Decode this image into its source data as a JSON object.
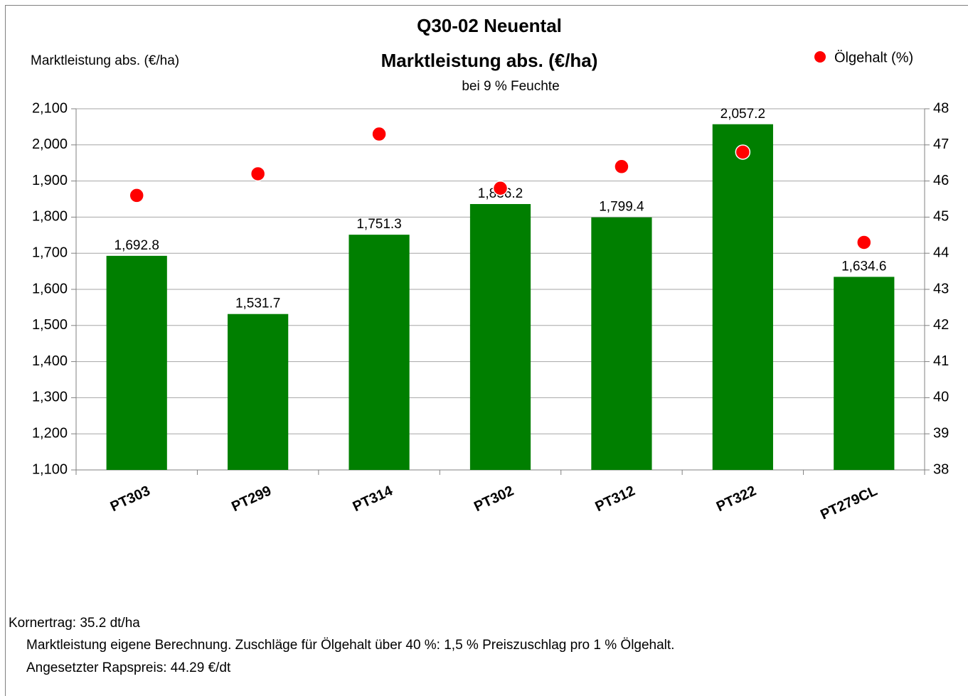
{
  "chart_data": {
    "type": "bar",
    "title": "Q30-02 Neuental",
    "subtitle": "Marktleistung abs. (€/ha)",
    "note": "bei 9 % Feuchte",
    "y_label": "Marktleistung abs. (€/ha)",
    "categories": [
      "PT303",
      "PT299",
      "PT314",
      "PT302",
      "PT312",
      "PT322",
      "PT279CL"
    ],
    "series": [
      {
        "type": "bar",
        "color": "#007f00",
        "values": [
          1692.8,
          1531.7,
          1751.3,
          1836.2,
          1799.4,
          2057.2,
          1634.6
        ],
        "value_labels": [
          "1,692.8",
          "1,531.7",
          "1,751.3",
          "1,836.2",
          "1,799.4",
          "2,057.2",
          "1,634.6"
        ]
      },
      {
        "type": "scatter",
        "name": "Ölgehalt (%)",
        "color": "#ff0000",
        "axis": "y2",
        "values": [
          45.6,
          46.2,
          47.3,
          45.8,
          46.4,
          46.8,
          44.3
        ]
      }
    ],
    "ylim": [
      1100,
      2100
    ],
    "yticks": [
      {
        "value": 1100,
        "label": "1,100"
      },
      {
        "value": 1200,
        "label": "1,200"
      },
      {
        "value": 1300,
        "label": "1,300"
      },
      {
        "value": 1400,
        "label": "1,400"
      },
      {
        "value": 1500,
        "label": "1,500"
      },
      {
        "value": 1600,
        "label": "1,600"
      },
      {
        "value": 1700,
        "label": "1,700"
      },
      {
        "value": 1800,
        "label": "1,800"
      },
      {
        "value": 1900,
        "label": "1,900"
      },
      {
        "value": 2000,
        "label": "2,000"
      },
      {
        "value": 2100,
        "label": "2,100"
      }
    ],
    "y2lim": [
      38,
      48
    ],
    "y2ticks": [
      38,
      39,
      40,
      41,
      42,
      43,
      44,
      45,
      46,
      47,
      48
    ],
    "grid": true,
    "legend": "top-right",
    "footnotes": [
      "Kornertrag: 35.2 dt/ha",
      "Marktleistung eigene Berechnung. Zuschläge für Ölgehalt über 40 %: 1,5 % Preiszuschlag pro 1 % Ölgehalt.",
      "Angesetzter Rapspreis: 44.29 €/dt"
    ]
  }
}
